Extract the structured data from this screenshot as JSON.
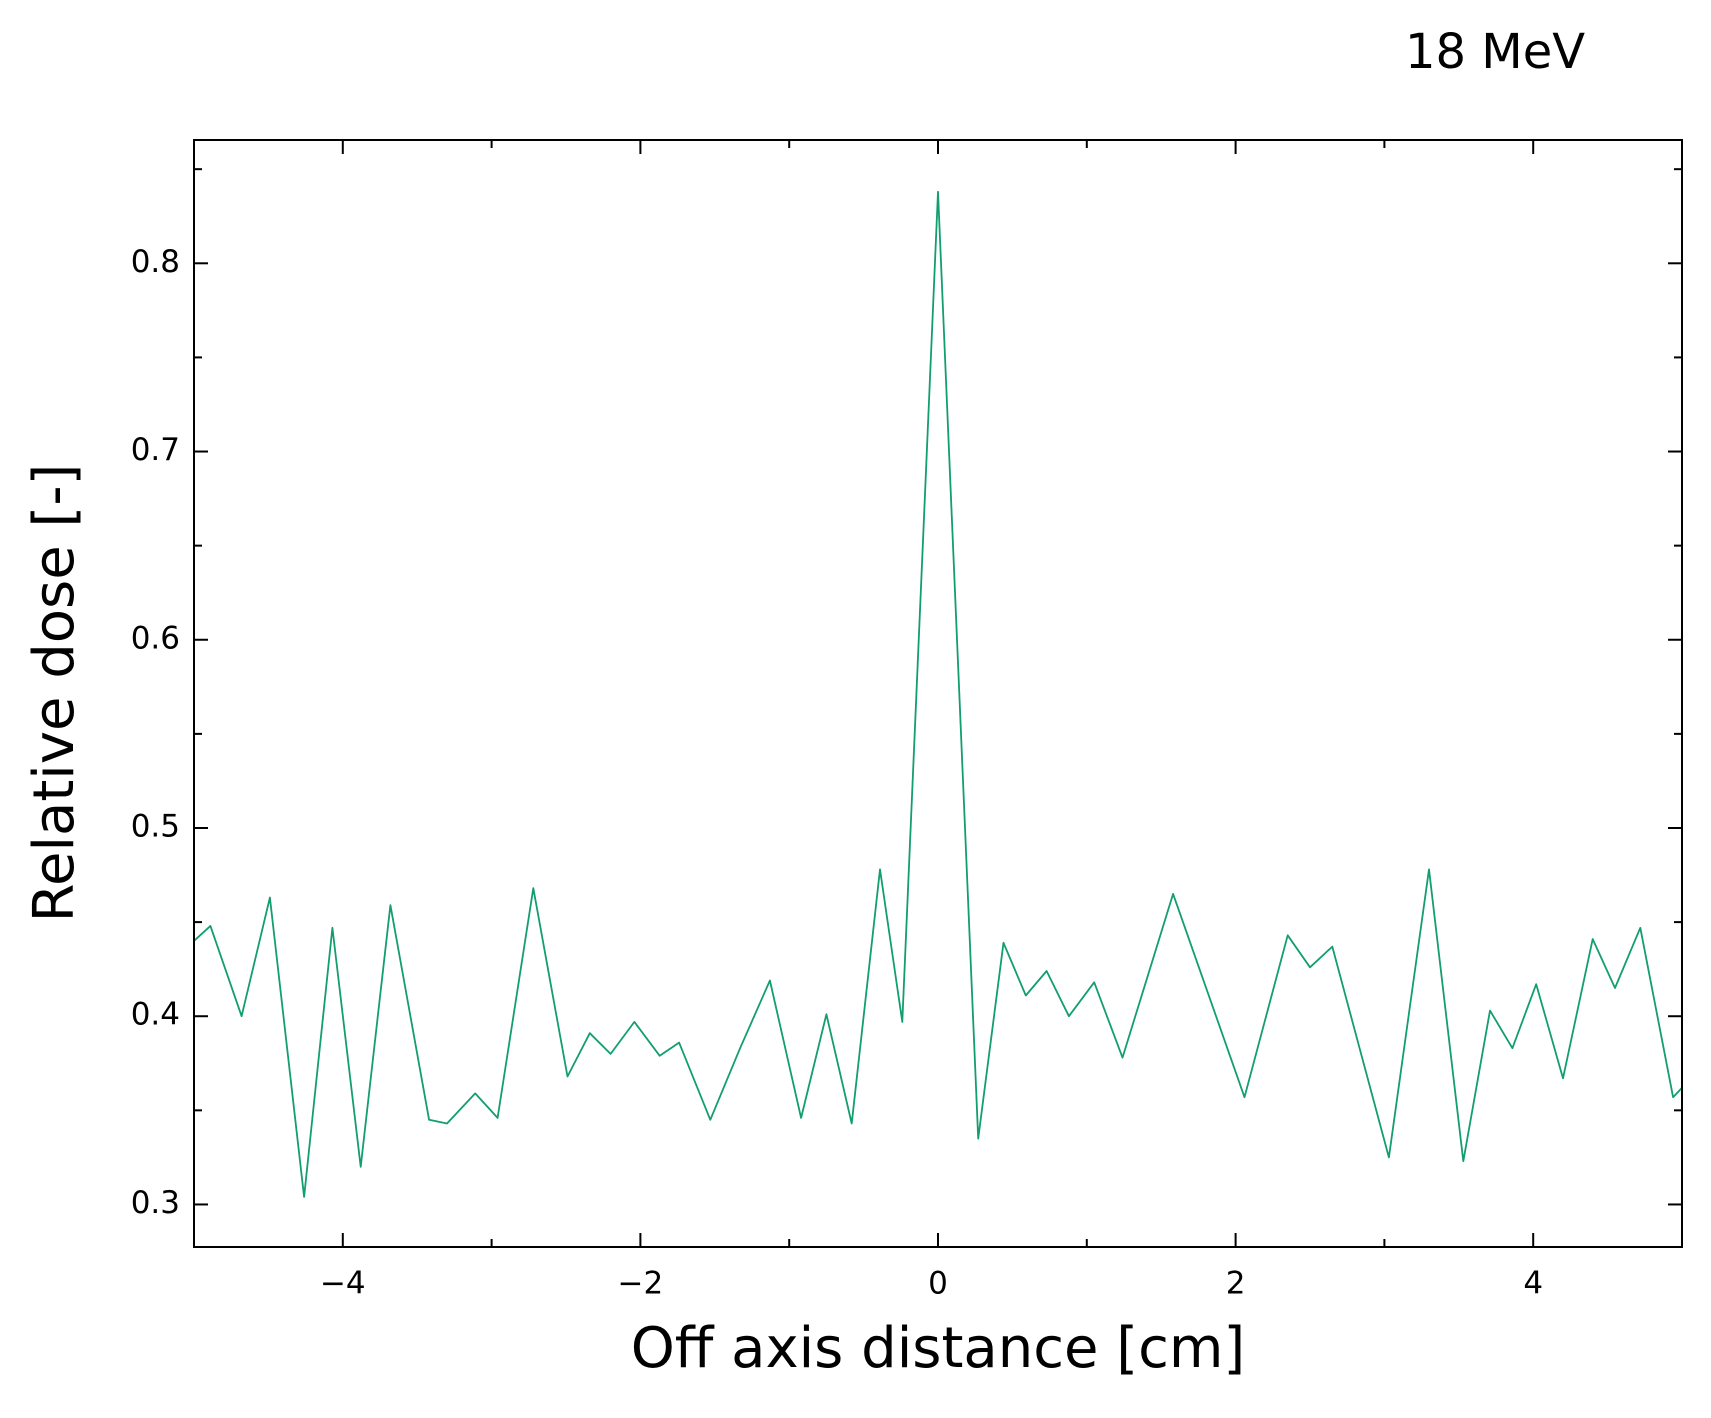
{
  "chart_data": {
    "type": "line",
    "title": "18 MeV",
    "xlabel": "Off axis distance [cm]",
    "ylabel": "Relative dose [-]",
    "x": [
      -5,
      -4.89,
      -4.68,
      -4.49,
      -4.26,
      -4.07,
      -3.88,
      -3.68,
      -3.42,
      -3.3,
      -3.11,
      -2.96,
      -2.72,
      -2.49,
      -2.34,
      -2.2,
      -2.04,
      -1.87,
      -1.74,
      -1.53,
      -1.33,
      -1.13,
      -0.92,
      -0.75,
      -0.58,
      -0.39,
      -0.24,
      0,
      0.27,
      0.44,
      0.59,
      0.73,
      0.88,
      1.05,
      1.24,
      1.58,
      2.06,
      2.35,
      2.5,
      2.65,
      3.03,
      3.3,
      3.53,
      3.71,
      3.86,
      4.02,
      4.2,
      4.4,
      4.55,
      4.72,
      4.94,
      5
    ],
    "series": [
      {
        "name": "18 MeV",
        "color": "#129e6e",
        "values": [
          0.44,
          0.448,
          0.4,
          0.463,
          0.304,
          0.447,
          0.32,
          0.459,
          0.345,
          0.343,
          0.359,
          0.346,
          0.468,
          0.368,
          0.391,
          0.38,
          0.397,
          0.379,
          0.386,
          0.345,
          0.383,
          0.419,
          0.346,
          0.401,
          0.343,
          0.478,
          0.397,
          0.838,
          0.335,
          0.439,
          0.411,
          0.424,
          0.4,
          0.418,
          0.378,
          0.465,
          0.357,
          0.443,
          0.426,
          0.437,
          0.325,
          0.478,
          0.323,
          0.403,
          0.383,
          0.417,
          0.367,
          0.441,
          0.415,
          0.447,
          0.357,
          0.362
        ]
      }
    ],
    "xlim": [
      -5,
      5
    ],
    "xticks": [
      {
        "value": -4,
        "label": "−4"
      },
      {
        "value": -2,
        "label": "−2"
      },
      0,
      2,
      4
    ],
    "ylim": [
      0.2774,
      0.8655
    ],
    "yticks": [
      0.3,
      0.4,
      0.5,
      0.6,
      0.7,
      0.8
    ]
  }
}
